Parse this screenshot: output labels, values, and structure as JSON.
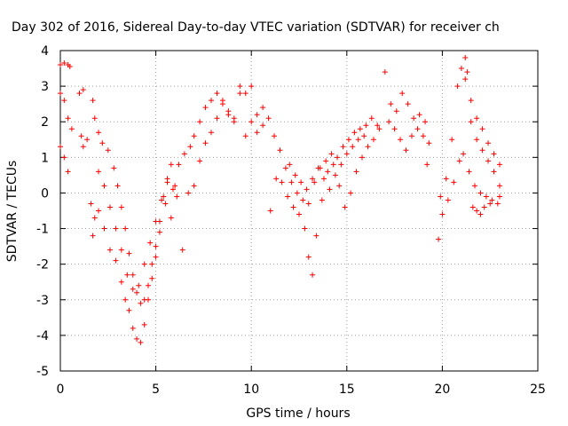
{
  "chart_data": {
    "type": "scatter",
    "title": "Day 302 of 2016, Sidereal Day-to-day VTEC variation (SDTVAR) for receiver ch",
    "xlabel": "GPS time / hours",
    "ylabel": "SDTVAR / TECUs",
    "xlim": [
      0,
      25
    ],
    "ylim": [
      -5,
      4
    ],
    "x_ticks": [
      0,
      5,
      10,
      15,
      20,
      25
    ],
    "y_ticks": [
      -5,
      -4,
      -3,
      -2,
      -1,
      0,
      1,
      2,
      3,
      4
    ],
    "grid": true,
    "marker": "+",
    "color": "#ff0000",
    "series": [
      {
        "points": [
          [
            0.0,
            2.8
          ],
          [
            0.2,
            2.6
          ],
          [
            0.4,
            2.1
          ],
          [
            0.6,
            1.8
          ],
          [
            1.2,
            2.9
          ],
          [
            1.4,
            1.5
          ],
          [
            1.7,
            2.6
          ],
          [
            1.8,
            2.1
          ],
          [
            2.0,
            1.7
          ],
          [
            2.2,
            1.4
          ],
          [
            2.5,
            1.2
          ],
          [
            2.8,
            0.7
          ],
          [
            3.0,
            0.2
          ],
          [
            3.2,
            -0.4
          ],
          [
            3.4,
            -1.0
          ],
          [
            3.6,
            -1.7
          ],
          [
            3.8,
            -2.3
          ],
          [
            4.0,
            -2.8
          ],
          [
            4.2,
            -3.1
          ],
          [
            4.4,
            -3.0
          ],
          [
            4.6,
            -2.6
          ],
          [
            4.8,
            -2.0
          ],
          [
            5.0,
            -1.5
          ],
          [
            5.2,
            -0.8
          ],
          [
            5.4,
            -0.1
          ],
          [
            5.6,
            0.4
          ],
          [
            5.8,
            0.8
          ],
          [
            6.0,
            0.2
          ],
          [
            6.2,
            0.8
          ],
          [
            6.5,
            1.1
          ],
          [
            6.8,
            1.3
          ],
          [
            7.0,
            1.6
          ],
          [
            7.3,
            2.0
          ],
          [
            7.6,
            2.4
          ],
          [
            7.9,
            2.6
          ],
          [
            8.2,
            2.8
          ],
          [
            8.5,
            2.6
          ],
          [
            8.8,
            2.3
          ],
          [
            9.1,
            2.1
          ],
          [
            9.4,
            2.8
          ],
          [
            9.7,
            1.6
          ],
          [
            10.0,
            2.0
          ],
          [
            10.3,
            1.7
          ],
          [
            10.6,
            2.4
          ],
          [
            10.9,
            2.1
          ],
          [
            11.2,
            1.6
          ],
          [
            11.5,
            1.2
          ],
          [
            11.8,
            0.7
          ],
          [
            12.1,
            0.3
          ],
          [
            12.4,
            0.0
          ],
          [
            12.7,
            -0.2
          ],
          [
            13.0,
            -0.3
          ],
          [
            13.3,
            0.3
          ],
          [
            13.6,
            0.7
          ],
          [
            13.9,
            0.9
          ],
          [
            14.2,
            1.1
          ],
          [
            14.5,
            1.0
          ],
          [
            14.8,
            1.3
          ],
          [
            15.1,
            1.5
          ],
          [
            15.4,
            1.7
          ],
          [
            15.7,
            1.8
          ],
          [
            16.0,
            1.9
          ],
          [
            16.3,
            2.1
          ],
          [
            16.6,
            1.9
          ],
          [
            17.0,
            3.4
          ],
          [
            17.3,
            2.5
          ],
          [
            17.6,
            2.3
          ],
          [
            17.9,
            2.8
          ],
          [
            18.2,
            2.5
          ],
          [
            18.5,
            2.1
          ],
          [
            18.8,
            2.2
          ],
          [
            19.1,
            2.0
          ],
          [
            19.3,
            1.4
          ],
          [
            19.9,
            -0.1
          ],
          [
            20.2,
            0.4
          ],
          [
            20.5,
            1.5
          ],
          [
            20.8,
            3.0
          ],
          [
            21.0,
            3.5
          ],
          [
            21.2,
            3.2
          ],
          [
            21.5,
            2.6
          ],
          [
            21.8,
            2.1
          ],
          [
            22.1,
            1.8
          ],
          [
            22.4,
            1.4
          ],
          [
            22.7,
            1.1
          ],
          [
            23.0,
            0.8
          ]
        ]
      },
      {
        "points": [
          [
            0.0,
            3.6
          ],
          [
            0.2,
            3.65
          ],
          [
            0.4,
            3.6
          ],
          [
            0.5,
            3.55
          ],
          [
            0.0,
            1.3
          ],
          [
            0.2,
            1.0
          ],
          [
            0.4,
            0.6
          ],
          [
            1.0,
            2.8
          ],
          [
            1.1,
            1.6
          ],
          [
            1.2,
            1.3
          ],
          [
            1.6,
            -0.3
          ],
          [
            1.7,
            -1.2
          ],
          [
            1.8,
            -0.7
          ],
          [
            2.0,
            -0.5
          ],
          [
            2.3,
            -1.0
          ],
          [
            2.6,
            -1.6
          ],
          [
            2.9,
            -1.9
          ],
          [
            3.2,
            -2.5
          ],
          [
            3.4,
            -3.0
          ],
          [
            3.6,
            -3.3
          ],
          [
            3.8,
            -3.8
          ],
          [
            4.0,
            -4.1
          ],
          [
            4.2,
            -4.2
          ],
          [
            4.4,
            -3.7
          ],
          [
            4.6,
            -3.0
          ],
          [
            4.8,
            -2.4
          ],
          [
            5.0,
            -1.8
          ],
          [
            5.2,
            -1.1
          ],
          [
            5.5,
            -0.3
          ],
          [
            5.8,
            -0.7
          ],
          [
            6.1,
            -0.1
          ],
          [
            6.4,
            -1.6
          ],
          [
            6.7,
            0.0
          ],
          [
            7.0,
            0.2
          ],
          [
            7.3,
            0.9
          ],
          [
            7.6,
            1.4
          ],
          [
            7.9,
            1.7
          ],
          [
            8.2,
            2.1
          ],
          [
            8.5,
            2.5
          ],
          [
            8.8,
            2.2
          ],
          [
            9.1,
            2.0
          ],
          [
            9.4,
            3.0
          ],
          [
            9.7,
            2.8
          ],
          [
            10.0,
            3.0
          ],
          [
            10.3,
            2.2
          ],
          [
            10.6,
            1.9
          ],
          [
            11.0,
            -0.5
          ],
          [
            11.3,
            0.4
          ],
          [
            11.6,
            0.3
          ],
          [
            11.9,
            -0.1
          ],
          [
            12.2,
            -0.4
          ],
          [
            12.5,
            -0.6
          ],
          [
            12.8,
            -1.0
          ],
          [
            13.0,
            -1.8
          ],
          [
            13.2,
            -2.3
          ],
          [
            13.4,
            -1.2
          ],
          [
            13.7,
            -0.2
          ],
          [
            14.0,
            0.6
          ],
          [
            14.3,
            0.8
          ],
          [
            14.6,
            0.2
          ],
          [
            14.9,
            -0.4
          ],
          [
            15.2,
            0.0
          ],
          [
            15.5,
            0.6
          ],
          [
            15.8,
            1.0
          ],
          [
            16.1,
            1.3
          ],
          [
            16.4,
            1.5
          ],
          [
            16.7,
            1.8
          ],
          [
            17.2,
            2.0
          ],
          [
            17.5,
            1.8
          ],
          [
            17.8,
            1.5
          ],
          [
            18.1,
            1.2
          ],
          [
            18.4,
            1.6
          ],
          [
            18.7,
            1.8
          ],
          [
            19.0,
            1.6
          ],
          [
            19.2,
            0.8
          ],
          [
            19.8,
            -1.3
          ],
          [
            20.0,
            -0.6
          ],
          [
            20.3,
            -0.2
          ],
          [
            20.6,
            0.3
          ],
          [
            20.9,
            0.9
          ],
          [
            21.1,
            1.1
          ],
          [
            21.4,
            0.6
          ],
          [
            21.7,
            0.2
          ],
          [
            22.0,
            0.0
          ],
          [
            22.3,
            -0.1
          ],
          [
            22.6,
            -0.2
          ],
          [
            22.9,
            -0.3
          ],
          [
            23.0,
            -0.1
          ]
        ]
      },
      {
        "points": [
          [
            2.0,
            0.6
          ],
          [
            2.3,
            0.2
          ],
          [
            2.6,
            -0.4
          ],
          [
            2.9,
            -1.0
          ],
          [
            3.2,
            -1.6
          ],
          [
            3.5,
            -2.3
          ],
          [
            3.8,
            -2.7
          ],
          [
            4.1,
            -2.6
          ],
          [
            4.4,
            -2.0
          ],
          [
            4.7,
            -1.4
          ],
          [
            5.0,
            -0.8
          ],
          [
            5.3,
            -0.2
          ],
          [
            5.6,
            0.3
          ],
          [
            5.9,
            0.1
          ],
          [
            12.0,
            0.8
          ],
          [
            12.3,
            0.5
          ],
          [
            12.6,
            0.3
          ],
          [
            12.9,
            0.1
          ],
          [
            13.2,
            0.4
          ],
          [
            13.5,
            0.7
          ],
          [
            13.8,
            0.4
          ],
          [
            14.1,
            0.1
          ],
          [
            14.4,
            0.5
          ],
          [
            14.7,
            0.8
          ],
          [
            15.0,
            1.1
          ],
          [
            15.3,
            1.3
          ],
          [
            15.6,
            1.5
          ],
          [
            15.9,
            1.6
          ],
          [
            21.2,
            3.8
          ],
          [
            21.3,
            3.4
          ],
          [
            21.5,
            2.0
          ],
          [
            21.8,
            1.5
          ],
          [
            22.1,
            1.2
          ],
          [
            22.4,
            0.9
          ],
          [
            22.7,
            0.6
          ],
          [
            23.0,
            0.2
          ],
          [
            21.6,
            -0.4
          ],
          [
            21.8,
            -0.5
          ],
          [
            22.0,
            -0.6
          ],
          [
            22.2,
            -0.4
          ],
          [
            22.5,
            -0.3
          ]
        ]
      }
    ]
  }
}
